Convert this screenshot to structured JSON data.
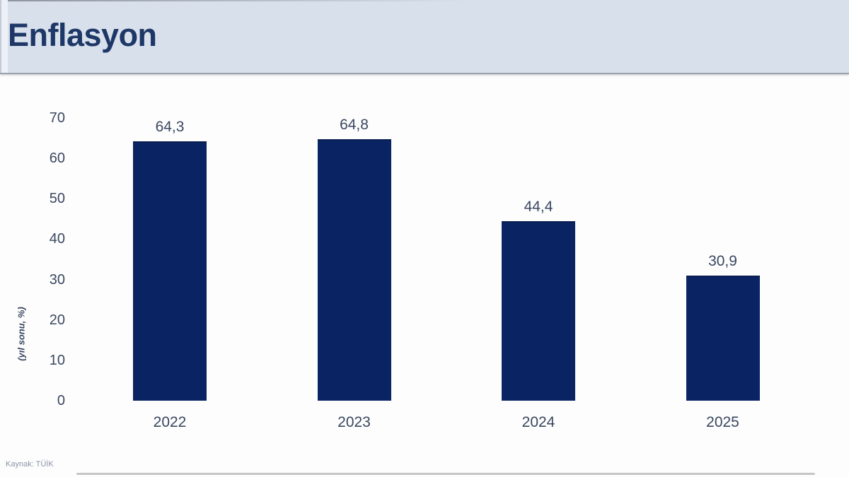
{
  "header": {
    "title": "Enflasyon"
  },
  "chart_data": {
    "type": "bar",
    "title": "Enflasyon",
    "categories": [
      "2022",
      "2023",
      "2024",
      "2025"
    ],
    "values": [
      64.3,
      64.8,
      44.4,
      30.9
    ],
    "value_labels": [
      "64,3",
      "64,8",
      "44,4",
      "30,9"
    ],
    "xlabel": "",
    "ylabel": "(yıl sonu, %)",
    "ylim": [
      0,
      70
    ],
    "yticks": [
      0,
      10,
      20,
      30,
      40,
      50,
      60,
      70
    ],
    "grid": false,
    "legend": "none",
    "bar_color": "#0a2363"
  },
  "footer": {
    "source": "Kaynak: TÜİK"
  },
  "colors": {
    "header_bg": "#d8e0ec",
    "title_text": "#1d3766",
    "axis_text": "#3a4760",
    "baseline": "#c6c6c6",
    "bar": "#0a2363",
    "source_text": "#8a93a8"
  }
}
